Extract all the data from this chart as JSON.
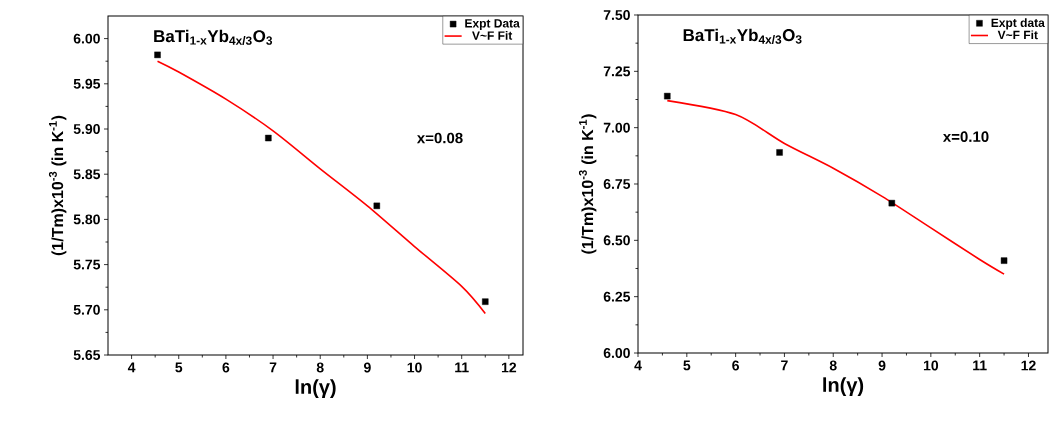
{
  "chart_data": [
    {
      "type": "scatter",
      "title": "**BaTi$_{1-x}$Yb$_{4x/3}$O$_{3}$**",
      "xlabel": "ln(γ)",
      "ylabel": "(1/Tm)x10$^{-3}$ (in K$^{-1}$)",
      "annotations": [
        "x=0.08"
      ],
      "xlim": [
        3.5,
        12.3
      ],
      "xticks": [
        4,
        5,
        6,
        7,
        8,
        9,
        10,
        11,
        12
      ],
      "ylim": [
        5.65,
        6.025
      ],
      "yticks": [
        {
          "value": 5.65,
          "label": "5.65"
        },
        {
          "value": 5.7,
          "label": "5.70"
        },
        {
          "value": 5.75,
          "label": "5.75"
        },
        {
          "value": 5.8,
          "label": "5.80"
        },
        {
          "value": 5.85,
          "label": "5.85"
        },
        {
          "value": 5.9,
          "label": "5.90"
        },
        {
          "value": 5.95,
          "label": "5.95"
        },
        {
          "value": 6.0,
          "label": "6.00"
        }
      ],
      "legend": "top right",
      "series": [
        {
          "name": "Expt Data",
          "marker": "square",
          "color": "#000000",
          "x": [
            4.55,
            6.9,
            9.2,
            11.5
          ],
          "values": [
            5.982,
            5.89,
            5.815,
            5.709
          ]
        },
        {
          "name": "V~F Fit",
          "type": "line",
          "color": "#ff0000",
          "x": [
            4.55,
            5,
            6,
            7,
            8,
            9,
            10,
            11,
            11.5
          ],
          "values": [
            5.975,
            5.963,
            5.933,
            5.898,
            5.856,
            5.815,
            5.77,
            5.726,
            5.696
          ]
        }
      ]
    },
    {
      "type": "scatter",
      "title": "**BaTi$_{1-x}$Yb$_{4x/3}$O$_{3}$**",
      "xlabel": "ln(γ)",
      "ylabel": "(1/Tm)x10$^{-3}$ (in K$^{-1}$)",
      "annotations": [
        "x=0.10"
      ],
      "xlim": [
        4,
        12.4
      ],
      "xticks": [
        4,
        5,
        6,
        7,
        8,
        9,
        10,
        11,
        12
      ],
      "ylim": [
        6.0,
        7.5
      ],
      "yticks": [
        {
          "value": 6.0,
          "label": "6.00"
        },
        {
          "value": 6.25,
          "label": "6.25"
        },
        {
          "value": 6.5,
          "label": "6.50"
        },
        {
          "value": 6.75,
          "label": "6.75"
        },
        {
          "value": 7.0,
          "label": "7.00"
        },
        {
          "value": 7.25,
          "label": "7.25"
        },
        {
          "value": 7.5,
          "label": "7.50"
        }
      ],
      "legend": "top right",
      "series": [
        {
          "name": "Expt data",
          "marker": "square",
          "color": "#000000",
          "x": [
            4.6,
            6.9,
            9.2,
            11.5
          ],
          "values": [
            7.14,
            6.89,
            6.665,
            6.41
          ]
        },
        {
          "name": "V~F Fit",
          "type": "line",
          "color": "#ff0000",
          "x": [
            4.6,
            6,
            7,
            8,
            9,
            10,
            11,
            11.5
          ],
          "values": [
            7.12,
            7.058,
            6.93,
            6.82,
            6.695,
            6.555,
            6.415,
            6.35
          ]
        }
      ]
    }
  ]
}
